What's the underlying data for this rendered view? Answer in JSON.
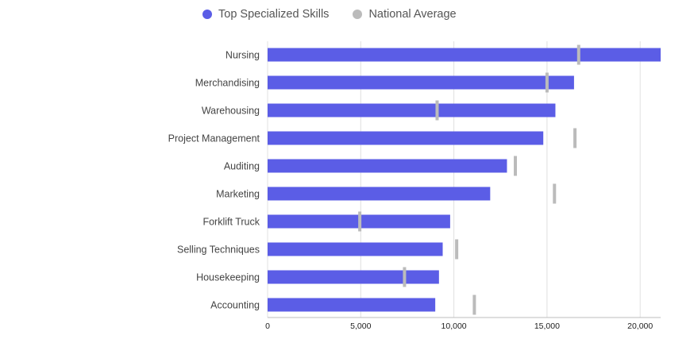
{
  "legend": {
    "primary_label": "Top Specialized Skills",
    "secondary_label": "National Average",
    "primary_color": "#5b5de6",
    "secondary_color": "#bbbbbb"
  },
  "chart_data": {
    "type": "bar",
    "orientation": "horizontal",
    "categories": [
      "Nursing",
      "Merchandising",
      "Warehousing",
      "Project Management",
      "Auditing",
      "Marketing",
      "Forklift Truck",
      "Selling Techniques",
      "Housekeeping",
      "Accounting"
    ],
    "series": [
      {
        "name": "Top Specialized Skills",
        "values": [
          21100,
          16450,
          15450,
          14800,
          12850,
          11950,
          9800,
          9400,
          9200,
          9000
        ],
        "color": "#5b5de6"
      },
      {
        "name": "National Average",
        "values": [
          16700,
          15000,
          9100,
          16500,
          13300,
          15400,
          4950,
          10150,
          7350,
          11100
        ],
        "color": "#bbbbbb"
      }
    ],
    "xlim": [
      0,
      21100
    ],
    "xticks": [
      0,
      5000,
      10000,
      15000,
      20000
    ],
    "xtick_labels": [
      "0",
      "5,000",
      "10,000",
      "15,000",
      "20,000"
    ],
    "grid": true,
    "legend_position": "top-left"
  }
}
